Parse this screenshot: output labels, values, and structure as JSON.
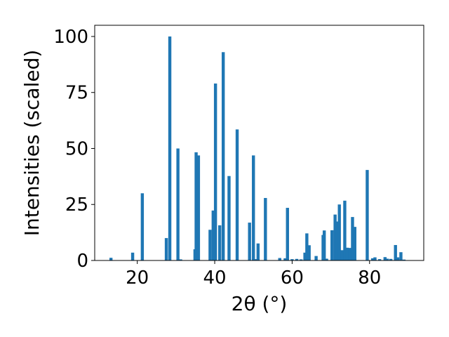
{
  "chart_data": {
    "type": "bar",
    "title": "",
    "xlabel": "2θ (°)",
    "ylabel": "Intensities (scaled)",
    "xlim": [
      9,
      94
    ],
    "ylim": [
      0,
      105
    ],
    "x_ticks": [
      20,
      40,
      60,
      80
    ],
    "y_ticks": [
      0,
      25,
      50,
      75,
      100
    ],
    "grid": false,
    "bar_color": "#1f77b4",
    "bar_width": 0.8,
    "x": [
      13.2,
      18.8,
      21.3,
      27.5,
      28.4,
      30.5,
      31.2,
      34.9,
      35.2,
      35.8,
      38.8,
      39.6,
      40.2,
      41.3,
      42.2,
      43.7,
      45.8,
      49.0,
      50.0,
      50.5,
      51.2,
      53.1,
      56.8,
      58.2,
      58.8,
      60.0,
      61.2,
      62.3,
      63.3,
      63.8,
      64.4,
      66.2,
      68.0,
      68.3,
      68.9,
      70.3,
      71.1,
      71.6,
      72.2,
      72.9,
      73.6,
      74.2,
      74.9,
      75.6,
      76.2,
      79.4,
      80.8,
      81.4,
      82.6,
      84.0,
      84.6,
      85.5,
      86.7,
      87.3,
      88.1,
      88.9
    ],
    "values": [
      1.2,
      3.5,
      30.0,
      10.0,
      100.0,
      50.0,
      0.5,
      5.0,
      48.3,
      46.9,
      13.7,
      22.3,
      79.0,
      15.7,
      93.0,
      37.7,
      58.5,
      16.9,
      46.9,
      0.6,
      7.6,
      27.9,
      1.1,
      1.0,
      23.5,
      0.6,
      0.7,
      0.5,
      3.5,
      12.1,
      6.8,
      2.0,
      11.4,
      13.4,
      0.8,
      13.5,
      20.5,
      17.4,
      25.0,
      4.6,
      26.7,
      5.7,
      5.6,
      19.4,
      15.0,
      40.4,
      1.0,
      1.4,
      0.6,
      1.5,
      0.8,
      0.7,
      6.9,
      1.4,
      3.7,
      0.4
    ]
  }
}
